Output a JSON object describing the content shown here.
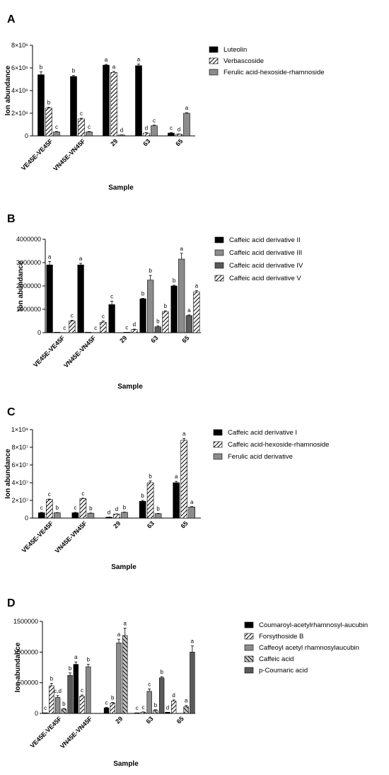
{
  "figure": {
    "panels": [
      "A",
      "B",
      "C",
      "D"
    ]
  },
  "colors": {
    "black": "#000000",
    "gray": "#8c8c8c",
    "dark_gray": "#5a5a5a",
    "white": "#ffffff"
  },
  "chart_data": [
    {
      "type": "bar",
      "panel": "A",
      "xlabel": "Sample",
      "ylabel": "Ion abundance",
      "ylim": [
        0,
        8000000
      ],
      "tick_labels": [
        "0",
        "2×10⁶",
        "4×10⁶",
        "6×10⁶",
        "8×10⁶"
      ],
      "tick_values": [
        0,
        2000000,
        4000000,
        6000000,
        8000000
      ],
      "categories": [
        "VE45E-VE45F",
        "VN45E-VN45F",
        "29",
        "63",
        "65"
      ],
      "legend_position": "right",
      "series": [
        {
          "name": "Luteolin",
          "pattern": "solid-black",
          "values": [
            5400000,
            5250000,
            6250000,
            6200000,
            250000
          ],
          "errors": [
            250000,
            80000,
            60000,
            150000,
            40000
          ],
          "letters": [
            "b",
            "b",
            "a",
            "a",
            "c"
          ]
        },
        {
          "name": "Verbascoside",
          "pattern": "hatch",
          "values": [
            2450000,
            1500000,
            5600000,
            250000,
            150000
          ],
          "errors": [
            80000,
            60000,
            100000,
            30000,
            20000
          ],
          "letters": [
            "b",
            "c",
            "a",
            "d",
            "d"
          ]
        },
        {
          "name": "Ferulic acid-hexoside-rhamnoside",
          "pattern": "gray",
          "values": [
            350000,
            350000,
            80000,
            900000,
            2000000
          ],
          "errors": [
            40000,
            40000,
            10000,
            50000,
            50000
          ],
          "letters": [
            "c",
            "c",
            "d",
            "c",
            "a"
          ]
        }
      ]
    },
    {
      "type": "bar",
      "panel": "B",
      "xlabel": "Sample",
      "ylabel": "Ion abundance",
      "ylim": [
        0,
        4000000
      ],
      "tick_labels": [
        "0",
        "1000000",
        "2000000",
        "3000000",
        "4000000"
      ],
      "tick_values": [
        0,
        1000000,
        2000000,
        3000000,
        4000000
      ],
      "categories": [
        "VE45E-VE45F",
        "VN45E-VN45F",
        "29",
        "63",
        "65"
      ],
      "legend_position": "right",
      "series": [
        {
          "name": "Caffeic acid derivative II",
          "pattern": "solid-black",
          "values": [
            2900000,
            2900000,
            1200000,
            1450000,
            2000000
          ],
          "errors": [
            150000,
            70000,
            150000,
            20000,
            30000
          ],
          "letters": [
            "a",
            "a",
            "c",
            "b",
            "b"
          ]
        },
        {
          "name": "Caffeic acid derivative III",
          "pattern": "gray",
          "values": [
            20000,
            20000,
            0,
            2250000,
            3150000
          ],
          "errors": [
            0,
            0,
            0,
            200000,
            250000
          ],
          "letters": [
            "",
            "",
            "",
            "b",
            "a"
          ]
        },
        {
          "name": "Caffeic acid derivative IV",
          "pattern": "dark-gray",
          "values": [
            0,
            0,
            20000,
            250000,
            730000
          ],
          "errors": [
            0,
            0,
            0,
            40000,
            30000
          ],
          "letters": [
            "c",
            "c",
            "c",
            "b",
            "a"
          ]
        },
        {
          "name": "Caffeic acid derivative V",
          "pattern": "hatch",
          "values": [
            500000,
            450000,
            130000,
            900000,
            1750000
          ],
          "errors": [
            30000,
            50000,
            20000,
            40000,
            50000
          ],
          "letters": [
            "c",
            "c",
            "d",
            "b",
            "a"
          ]
        }
      ]
    },
    {
      "type": "bar",
      "panel": "C",
      "xlabel": "Sample",
      "ylabel": "Ion abundance",
      "ylim": [
        0,
        100000000
      ],
      "tick_labels": [
        "0",
        "2×10⁷",
        "4×10⁷",
        "6×10⁷",
        "8×10⁷",
        "1×10⁸"
      ],
      "tick_values": [
        0,
        20000000,
        40000000,
        60000000,
        80000000,
        100000000
      ],
      "categories": [
        "VE45E-VE45F",
        "VN45E-VN45F",
        "29",
        "63",
        "65"
      ],
      "legend_position": "right",
      "series": [
        {
          "name": "Caffeic acid derivative I",
          "pattern": "solid-black",
          "values": [
            6000000,
            6000000,
            1000000,
            19000000,
            40000000
          ],
          "errors": [
            500000,
            500000,
            200000,
            1000000,
            1500000
          ],
          "letters": [
            "c",
            "c",
            "d",
            "b",
            "a"
          ]
        },
        {
          "name": "Caffeic acid-hexoside-rhamnoside",
          "pattern": "hatch",
          "values": [
            21000000,
            22000000,
            4500000,
            40000000,
            88000000
          ],
          "errors": [
            500000,
            500000,
            300000,
            2000000,
            2000000
          ],
          "letters": [
            "c",
            "c",
            "d",
            "b",
            "a"
          ]
        },
        {
          "name": "Ferulic acid derivative",
          "pattern": "gray",
          "values": [
            6000000,
            5500000,
            6500000,
            5000000,
            12500000
          ],
          "errors": [
            300000,
            300000,
            300000,
            300000,
            500000
          ],
          "letters": [
            "b",
            "b",
            "b",
            "b",
            "a"
          ]
        }
      ]
    },
    {
      "type": "bar",
      "panel": "D",
      "xlabel": "Sample",
      "ylabel": "Ion abundance",
      "ylim": [
        0,
        1500000
      ],
      "tick_labels": [
        "0",
        "500000",
        "1000000",
        "1500000"
      ],
      "tick_values": [
        0,
        500000,
        1000000,
        1500000
      ],
      "categories": [
        "VE45E-VE45F",
        "VN45E-VN45F",
        "29",
        "63",
        "65"
      ],
      "legend_position": "right",
      "series": [
        {
          "name": "Coumaroyl-acetylrhamnosyl-aucubin",
          "pattern": "solid-black",
          "values": [
            10000,
            800000,
            90000,
            10000,
            20000
          ],
          "errors": [
            0,
            40000,
            10000,
            0,
            0
          ],
          "letters": [
            "c",
            "a",
            "c",
            "c",
            "d"
          ]
        },
        {
          "name": "Forsythoside B",
          "pattern": "hatch",
          "values": [
            450000,
            280000,
            170000,
            20000,
            200000
          ],
          "errors": [
            40000,
            20000,
            10000,
            5000,
            20000
          ],
          "letters": [
            "b",
            "c",
            "b",
            "c",
            "d"
          ]
        },
        {
          "name": "Caffeoyl acetyl rhamnosylaucubin",
          "pattern": "gray",
          "values": [
            260000,
            760000,
            1150000,
            360000,
            0
          ],
          "errors": [
            30000,
            40000,
            60000,
            40000,
            0
          ],
          "letters": [
            "c,d",
            "b",
            "a",
            "c",
            ""
          ]
        },
        {
          "name": "Caffeic acid",
          "pattern": "dark-hatch",
          "values": [
            70000,
            0,
            1270000,
            50000,
            110000
          ],
          "errors": [
            10000,
            0,
            120000,
            10000,
            20000
          ],
          "letters": [
            "b",
            "",
            "a",
            "b",
            "a"
          ]
        },
        {
          "name": "p-Coumaric acid",
          "pattern": "dark-gray",
          "values": [
            620000,
            0,
            0,
            580000,
            1000000
          ],
          "errors": [
            40000,
            0,
            0,
            20000,
            100000
          ],
          "letters": [
            "b",
            "",
            "",
            "b",
            "a"
          ]
        }
      ]
    }
  ]
}
